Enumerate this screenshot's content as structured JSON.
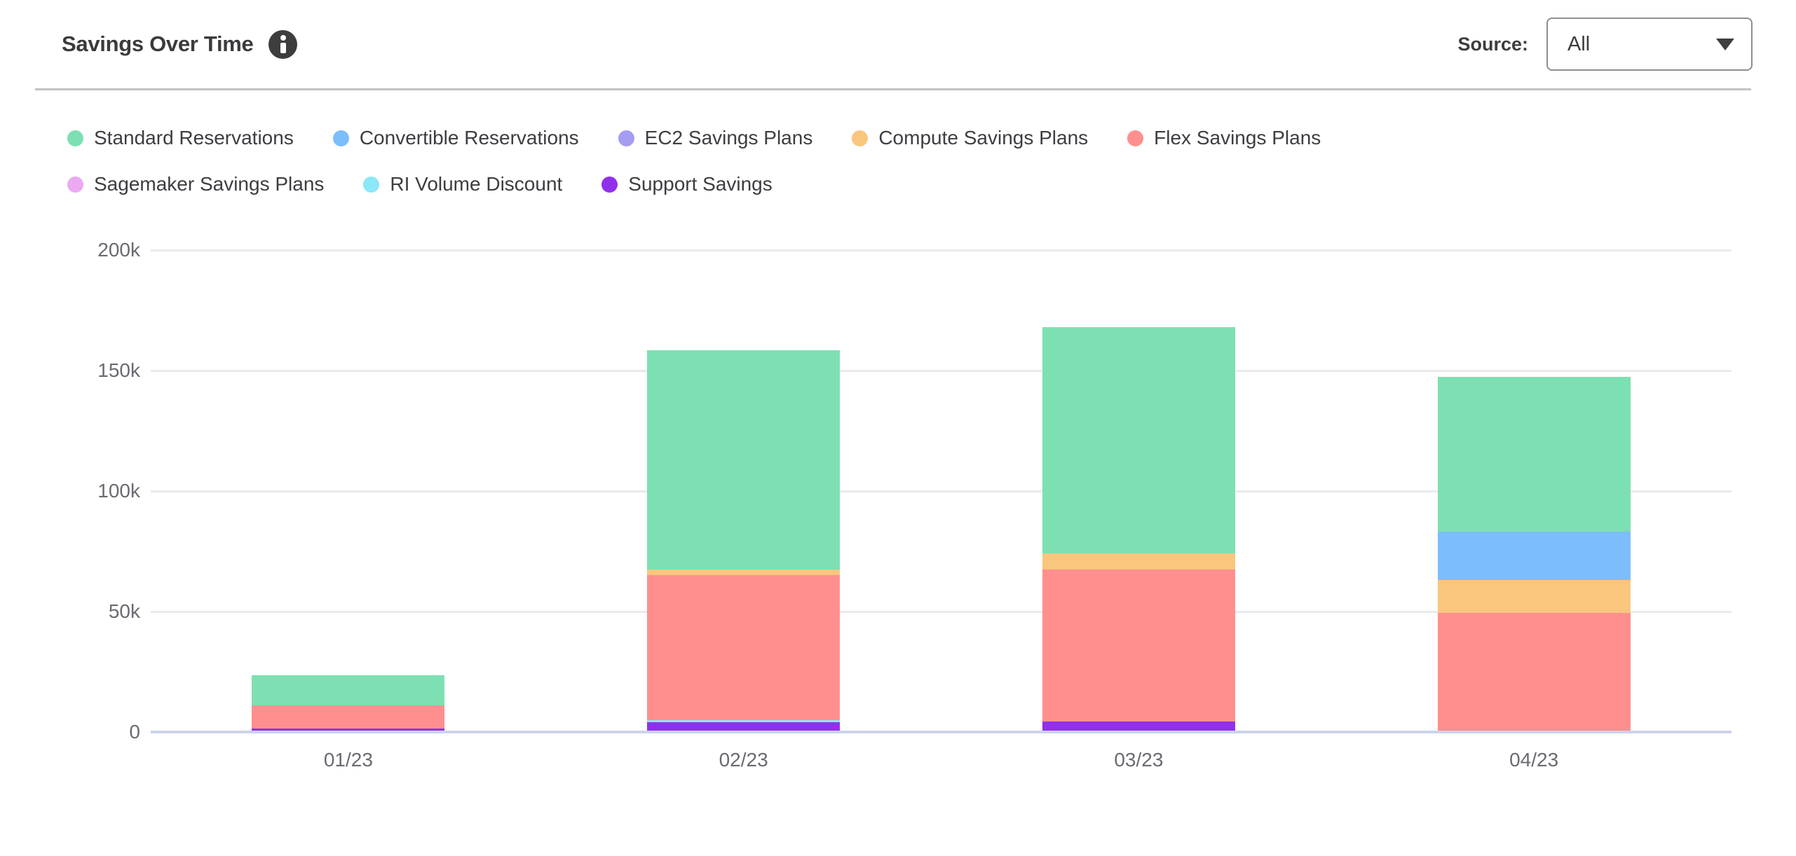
{
  "header": {
    "title": "Savings Over Time",
    "info_icon": "info-circle",
    "source_label": "Source:",
    "source_selected": "All"
  },
  "colors": {
    "axis_line": "#ccd3ea",
    "gridline": "#eaeaee",
    "tick_text": "#6a6a72",
    "heading_text": "#3b3b3e",
    "legend_text": "#3d3d42",
    "divider": "#c2c2c4",
    "dropdown_border": "#8e8e90",
    "info_icon_bg": "#3d3d3d"
  },
  "chart_data": {
    "type": "bar",
    "stacked": true,
    "title": "Savings Over Time",
    "categories": [
      "01/23",
      "02/23",
      "03/23",
      "04/23"
    ],
    "series": [
      {
        "name": "Standard Reservations",
        "color": "#7de0b2",
        "values": [
          12.5,
          91,
          94,
          64.5
        ]
      },
      {
        "name": "Convertible Reservations",
        "color": "#7cbdfc",
        "values": [
          0,
          0,
          0,
          20
        ]
      },
      {
        "name": "EC2 Savings Plans",
        "color": "#a49df2",
        "values": [
          0,
          0,
          0,
          0
        ]
      },
      {
        "name": "Compute Savings Plans",
        "color": "#f9c67e",
        "values": [
          0,
          2.5,
          6.5,
          13.5
        ]
      },
      {
        "name": "Flex Savings Plans",
        "color": "#ff8f8f",
        "values": [
          9.5,
          60,
          63,
          49.5
        ]
      },
      {
        "name": "Sagemaker Savings Plans",
        "color": "#eba9f1",
        "values": [
          0,
          0,
          0,
          0
        ]
      },
      {
        "name": "RI Volume Discount",
        "color": "#8ce7f7",
        "values": [
          0,
          1,
          0,
          0
        ]
      },
      {
        "name": "Support Savings",
        "color": "#9130ec",
        "values": [
          1.5,
          4,
          4.5,
          0
        ]
      }
    ],
    "stack_totals": [
      23.5,
      158.5,
      168,
      147.5
    ],
    "values_scale": "thousands",
    "y_ticks": [
      {
        "value": 0,
        "label": "0"
      },
      {
        "value": 50,
        "label": "50k"
      },
      {
        "value": 100,
        "label": "100k"
      },
      {
        "value": 150,
        "label": "150k"
      },
      {
        "value": 200,
        "label": "200k"
      }
    ],
    "ylim": [
      0,
      200
    ],
    "xlabel": "",
    "ylabel": "",
    "grid": true,
    "legend_position": "top-left",
    "stack_order": "reverse-legend"
  }
}
